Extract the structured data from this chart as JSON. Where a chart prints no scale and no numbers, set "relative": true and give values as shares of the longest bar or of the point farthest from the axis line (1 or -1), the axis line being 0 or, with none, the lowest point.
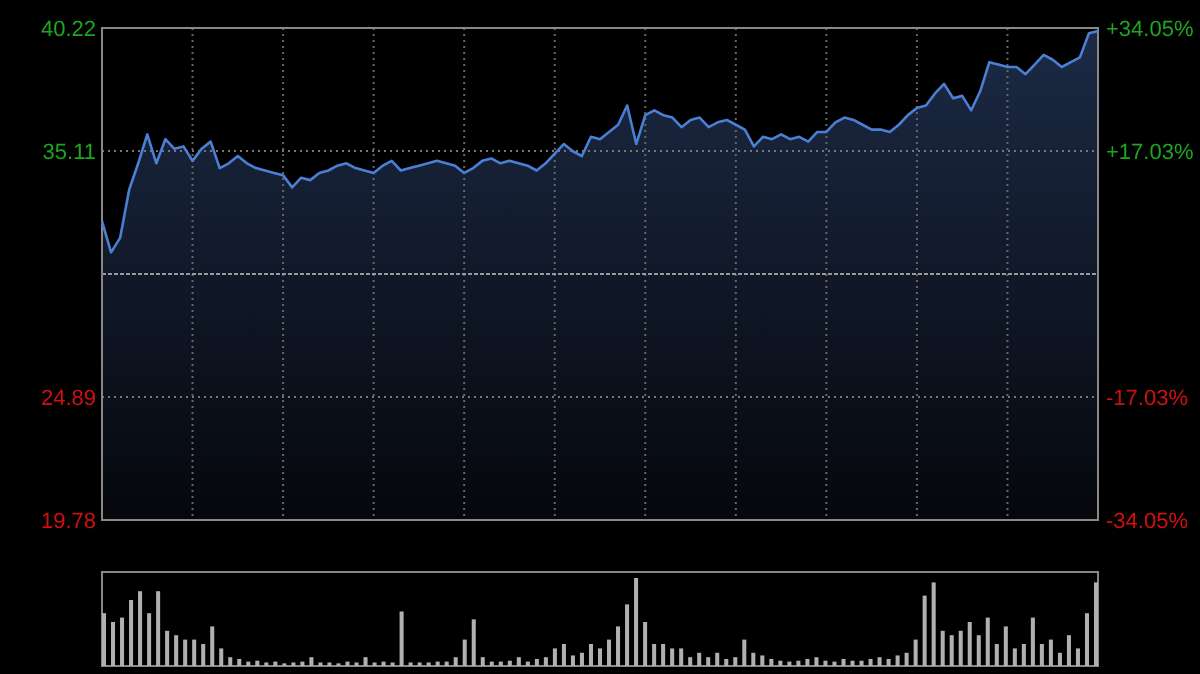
{
  "chart_data": [
    {
      "type": "area",
      "color": "#4a7fd4",
      "grid": true,
      "categories": [
        null,
        null,
        null,
        null,
        null,
        null,
        null,
        null,
        null,
        null,
        null,
        null,
        null,
        null,
        null,
        null,
        null,
        null,
        null,
        null,
        null,
        null,
        null,
        null,
        null,
        null,
        null,
        null,
        null,
        null,
        null,
        null,
        null,
        null,
        null,
        null,
        null,
        null,
        null,
        null,
        null,
        null,
        null,
        null,
        null,
        null,
        null,
        null,
        null,
        null,
        null,
        null,
        null,
        null,
        null,
        null,
        null,
        null,
        null,
        null,
        null,
        null,
        null,
        null,
        null,
        null,
        null,
        null,
        null,
        null,
        null,
        null,
        null,
        null,
        null,
        null,
        null,
        null,
        null,
        null,
        null,
        null,
        null,
        null,
        null,
        null,
        null,
        null,
        null,
        null,
        null,
        null,
        null,
        null,
        null,
        null,
        null,
        null,
        null,
        null,
        null,
        null,
        null,
        null,
        null,
        null,
        null,
        null,
        null,
        null,
        null
      ],
      "values": [
        32.2,
        30.9,
        31.5,
        33.5,
        34.6,
        35.8,
        34.6,
        35.6,
        35.2,
        35.3,
        34.7,
        35.2,
        35.5,
        34.4,
        34.6,
        34.9,
        34.6,
        34.4,
        34.3,
        34.2,
        34.1,
        33.6,
        34.0,
        33.9,
        34.2,
        34.3,
        34.5,
        34.6,
        34.4,
        34.3,
        34.2,
        34.5,
        34.7,
        34.3,
        34.4,
        34.5,
        34.6,
        34.7,
        34.6,
        34.5,
        34.2,
        34.4,
        34.7,
        34.8,
        34.6,
        34.7,
        34.6,
        34.5,
        34.3,
        34.6,
        35.0,
        35.4,
        35.1,
        34.9,
        35.7,
        35.6,
        35.9,
        36.2,
        37.0,
        35.4,
        36.6,
        36.8,
        36.6,
        36.5,
        36.1,
        36.4,
        36.5,
        36.1,
        36.3,
        36.4,
        36.2,
        36.0,
        35.3,
        35.7,
        35.6,
        35.8,
        35.6,
        35.7,
        35.5,
        35.9,
        35.9,
        36.3,
        36.5,
        36.4,
        36.2,
        36.0,
        36.0,
        35.9,
        36.2,
        36.6,
        36.9,
        37.0,
        37.5,
        37.9,
        37.3,
        37.4,
        36.8,
        37.6,
        38.8,
        38.7,
        38.6,
        38.6,
        38.3,
        38.7,
        39.1,
        38.9,
        38.6,
        38.8,
        39.0,
        40.0,
        40.1
      ],
      "ylim": [
        19.78,
        40.22
      ],
      "yticks": [
        19.78,
        24.89,
        35.11,
        40.22
      ],
      "ref_lines": [
        {
          "axis": "y",
          "value": 30,
          "color": "#999999",
          "line_style": "dashed"
        }
      ],
      "y2lim": [
        -34.05,
        34.05
      ],
      "y2ticks": [
        {
          "value": -34.05,
          "label": "-34.05%"
        },
        {
          "value": -17.03,
          "label": "-17.03%"
        },
        {
          "value": 17.03,
          "label": "+17.03%"
        },
        {
          "value": 34.05,
          "label": "+34.05%"
        }
      ]
    },
    {
      "type": "bar",
      "relative": true,
      "color": "#b0b0b0",
      "categories": [
        null,
        null,
        null,
        null,
        null,
        null,
        null,
        null,
        null,
        null,
        null,
        null,
        null,
        null,
        null,
        null,
        null,
        null,
        null,
        null,
        null,
        null,
        null,
        null,
        null,
        null,
        null,
        null,
        null,
        null,
        null,
        null,
        null,
        null,
        null,
        null,
        null,
        null,
        null,
        null,
        null,
        null,
        null,
        null,
        null,
        null,
        null,
        null,
        null,
        null,
        null,
        null,
        null,
        null,
        null,
        null,
        null,
        null,
        null,
        null,
        null,
        null,
        null,
        null,
        null,
        null,
        null,
        null,
        null,
        null,
        null,
        null,
        null,
        null,
        null,
        null,
        null,
        null,
        null,
        null,
        null,
        null,
        null,
        null,
        null,
        null,
        null,
        null,
        null,
        null,
        null,
        null,
        null,
        null,
        null,
        null,
        null,
        null,
        null,
        null,
        null,
        null,
        null,
        null,
        null,
        null,
        null,
        null,
        null,
        null,
        null
      ],
      "values": [
        0.6,
        0.5,
        0.55,
        0.75,
        0.85,
        0.6,
        0.85,
        0.4,
        0.35,
        0.3,
        0.3,
        0.25,
        0.45,
        0.2,
        0.1,
        0.08,
        0.05,
        0.06,
        0.04,
        0.05,
        0.03,
        0.04,
        0.05,
        0.1,
        0.04,
        0.04,
        0.03,
        0.05,
        0.04,
        0.1,
        0.04,
        0.05,
        0.04,
        0.62,
        0.04,
        0.04,
        0.04,
        0.05,
        0.05,
        0.1,
        0.3,
        0.53,
        0.1,
        0.05,
        0.05,
        0.06,
        0.1,
        0.05,
        0.08,
        0.1,
        0.2,
        0.25,
        0.12,
        0.15,
        0.25,
        0.2,
        0.3,
        0.45,
        0.7,
        1.0,
        0.5,
        0.25,
        0.25,
        0.2,
        0.2,
        0.1,
        0.15,
        0.1,
        0.15,
        0.08,
        0.1,
        0.3,
        0.15,
        0.12,
        0.08,
        0.06,
        0.05,
        0.06,
        0.08,
        0.1,
        0.06,
        0.05,
        0.08,
        0.06,
        0.06,
        0.08,
        0.1,
        0.08,
        0.12,
        0.15,
        0.3,
        0.8,
        0.95,
        0.4,
        0.35,
        0.4,
        0.5,
        0.35,
        0.55,
        0.25,
        0.45,
        0.2,
        0.25,
        0.55,
        0.25,
        0.3,
        0.15,
        0.35,
        0.2,
        0.6,
        0.95
      ]
    }
  ]
}
